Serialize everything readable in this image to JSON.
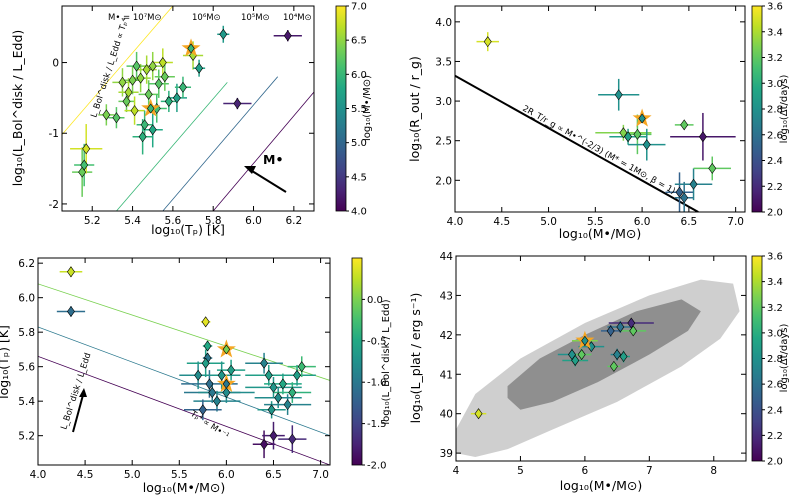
{
  "colors": {
    "viridis": [
      "#440154",
      "#482475",
      "#414487",
      "#355f8d",
      "#2a788e",
      "#21918c",
      "#22a884",
      "#44bf70",
      "#7ad151",
      "#bddf26",
      "#fde725"
    ],
    "highlight": "#f5a623",
    "grey_outer": "#cfcfcf",
    "grey_inner": "#8f8f8f",
    "arrow": "#000000"
  },
  "chart_data": [
    {
      "id": "p1",
      "type": "scatter",
      "xlabel": "log₁₀(Tₚ) [K]",
      "ylabel": "log₁₀(L_Bol^disk / L_Edd)",
      "xlim": [
        5.05,
        6.3
      ],
      "ylim": [
        -2.1,
        0.8
      ],
      "xticks": [
        5.2,
        5.4,
        5.6,
        5.8,
        6.0,
        6.2
      ],
      "xtick_labels": [
        "5.2",
        "5.4",
        "5.6",
        "5.8",
        "6.0",
        "6.2"
      ],
      "yticks": [
        -2,
        -1,
        0
      ],
      "ytick_labels": [
        "-2",
        "-1",
        "0"
      ],
      "colorbar": {
        "label": "log₁₀(M•/M⊙)",
        "min": 4.0,
        "max": 7.0,
        "ticks": [
          "4.0",
          "4.5",
          "5.0",
          "5.5",
          "6.0",
          "6.5",
          "7.0"
        ]
      },
      "lines": [
        {
          "label": "M• = 10⁷M⊙",
          "x": [
            5.05,
            5.6
          ],
          "y": [
            -1.02,
            0.8
          ],
          "color_value": 7.0
        },
        {
          "label": "10⁶M⊙",
          "x": [
            5.32,
            5.87
          ],
          "y": [
            -2.1,
            -0.28
          ],
          "color_value": 6.0
        },
        {
          "label": "10⁵M⊙",
          "x": [
            5.55,
            6.12
          ],
          "y": [
            -2.1,
            -0.2
          ],
          "color_value": 5.0
        },
        {
          "label": "10⁴M⊙",
          "x": [
            5.8,
            6.32
          ],
          "y": [
            -2.1,
            -0.35
          ],
          "color_value": 4.0
        }
      ],
      "annotations": [
        "L_Bol^disk / L_Edd ∝ Tₚ⁴",
        "M•"
      ],
      "points": [
        {
          "x": 5.15,
          "y": -1.55,
          "xe": 0.05,
          "ye": 0.35,
          "c": 6.3
        },
        {
          "x": 5.16,
          "y": -1.45,
          "xe": 0.05,
          "ye": 0.3,
          "c": 6.1
        },
        {
          "x": 5.17,
          "y": -1.22,
          "xe": 0.08,
          "ye": 0.35,
          "c": 6.8
        },
        {
          "x": 5.27,
          "y": -0.74,
          "xe": 0.04,
          "ye": 0.15,
          "c": 6.4
        },
        {
          "x": 5.32,
          "y": -0.78,
          "xe": 0.04,
          "ye": 0.15,
          "c": 6.2
        },
        {
          "x": 5.35,
          "y": -0.28,
          "xe": 0.05,
          "ye": 0.2,
          "c": 6.5
        },
        {
          "x": 5.37,
          "y": -0.55,
          "xe": 0.04,
          "ye": 0.15,
          "c": 6.3
        },
        {
          "x": 5.38,
          "y": -0.42,
          "xe": 0.05,
          "ye": 0.2,
          "c": 6.6
        },
        {
          "x": 5.4,
          "y": -0.25,
          "xe": 0.05,
          "ye": 0.2,
          "c": 6.4
        },
        {
          "x": 5.41,
          "y": -0.68,
          "xe": 0.05,
          "ye": 0.2,
          "c": 6.7
        },
        {
          "x": 5.42,
          "y": -0.05,
          "xe": 0.05,
          "ye": 0.2,
          "c": 6.2
        },
        {
          "x": 5.44,
          "y": -0.22,
          "xe": 0.05,
          "ye": 0.2,
          "c": 6.5
        },
        {
          "x": 5.45,
          "y": -1.05,
          "xe": 0.05,
          "ye": 0.25,
          "c": 5.9
        },
        {
          "x": 5.46,
          "y": -0.88,
          "xe": 0.04,
          "ye": 0.2,
          "c": 6.0
        },
        {
          "x": 5.47,
          "y": -0.1,
          "xe": 0.05,
          "ye": 0.2,
          "c": 6.6
        },
        {
          "x": 5.48,
          "y": -0.45,
          "xe": 0.05,
          "ye": 0.2,
          "c": 6.3
        },
        {
          "x": 5.5,
          "y": -0.95,
          "xe": 0.05,
          "ye": 0.25,
          "c": 5.8
        },
        {
          "x": 5.5,
          "y": -0.05,
          "xe": 0.05,
          "ye": 0.2,
          "c": 6.5
        },
        {
          "x": 5.52,
          "y": -0.65,
          "xe": 0.05,
          "ye": 0.2,
          "c": 6.1
        },
        {
          "x": 5.53,
          "y": -0.3,
          "xe": 0.05,
          "ye": 0.2,
          "c": 6.2
        },
        {
          "x": 5.55,
          "y": 0.0,
          "xe": 0.05,
          "ye": 0.2,
          "c": 6.7
        },
        {
          "x": 5.56,
          "y": -0.2,
          "xe": 0.05,
          "ye": 0.2,
          "c": 6.3
        },
        {
          "x": 5.58,
          "y": -0.55,
          "xe": 0.04,
          "ye": 0.15,
          "c": 5.9
        },
        {
          "x": 5.62,
          "y": -0.5,
          "xe": 0.05,
          "ye": 0.2,
          "c": 5.7
        },
        {
          "x": 5.65,
          "y": -0.35,
          "xe": 0.04,
          "ye": 0.15,
          "c": 6.0
        },
        {
          "x": 5.7,
          "y": 0.1,
          "xe": 0.05,
          "ye": 0.2,
          "c": 6.6
        },
        {
          "x": 5.73,
          "y": -0.08,
          "xe": 0.03,
          "ye": 0.12,
          "c": 5.7
        },
        {
          "x": 5.85,
          "y": 0.4,
          "xe": 0.03,
          "ye": 0.12,
          "c": 5.6
        },
        {
          "x": 5.92,
          "y": -0.58,
          "xe": 0.07,
          "ye": 0.08,
          "c": 4.3
        },
        {
          "x": 6.17,
          "y": 0.38,
          "xe": 0.07,
          "ye": 0.08,
          "c": 4.2
        }
      ],
      "highlights": [
        {
          "x": 5.49,
          "y": -0.65,
          "c": 6.0
        },
        {
          "x": 5.69,
          "y": 0.2,
          "c": 6.0
        }
      ]
    },
    {
      "id": "p2",
      "type": "scatter",
      "xlabel": "log₁₀(M•/M⊙)",
      "ylabel": "log₁₀(R_out / r_g)",
      "xlim": [
        4.0,
        7.1
      ],
      "ylim": [
        1.6,
        4.2
      ],
      "xticks": [
        4.0,
        4.5,
        5.0,
        5.5,
        6.0,
        6.5,
        7.0
      ],
      "xtick_labels": [
        "4.0",
        "4.5",
        "5.0",
        "5.5",
        "6.0",
        "6.5",
        "7.0"
      ],
      "yticks": [
        2.0,
        2.5,
        3.0,
        3.5,
        4.0
      ],
      "ytick_labels": [
        "2.0",
        "2.5",
        "3.0",
        "3.5",
        "4.0"
      ],
      "colorbar": {
        "label": "log₁₀(Δt/days)",
        "min": 2.0,
        "max": 3.6,
        "ticks": [
          "2.0",
          "2.2",
          "2.4",
          "2.6",
          "2.8",
          "3.0",
          "3.2",
          "3.4",
          "3.6"
        ]
      },
      "lines": [
        {
          "label": "2R_T/r_g ∝ M•^(-2/3)  (M* = 1M⊙, β = 1)",
          "x": [
            4.0,
            6.6
          ],
          "y": [
            3.32,
            1.6
          ],
          "color_value": null
        }
      ],
      "annotations": [
        "2R_T/r_g ∝ M•^(-2/3)  (M* = 1M⊙, β = 1)"
      ],
      "points": [
        {
          "x": 4.35,
          "y": 3.75,
          "xe": 0.12,
          "ye": 0.12,
          "c": 3.5
        },
        {
          "x": 5.75,
          "y": 3.08,
          "xe": 0.22,
          "ye": 0.2,
          "c": 2.8
        },
        {
          "x": 5.8,
          "y": 2.6,
          "xe": 0.3,
          "ye": 0.1,
          "c": 3.3
        },
        {
          "x": 5.85,
          "y": 2.55,
          "xe": 0.2,
          "ye": 0.1,
          "c": 2.9
        },
        {
          "x": 5.95,
          "y": 2.58,
          "xe": 0.15,
          "ye": 0.25,
          "c": 3.2
        },
        {
          "x": 6.05,
          "y": 2.45,
          "xe": 0.2,
          "ye": 0.2,
          "c": 2.8
        },
        {
          "x": 6.45,
          "y": 2.7,
          "xe": 0.1,
          "ye": 0.05,
          "c": 3.2
        },
        {
          "x": 6.4,
          "y": 1.85,
          "xe": 0.15,
          "ye": 0.25,
          "c": 2.5
        },
        {
          "x": 6.45,
          "y": 1.78,
          "xe": 0.1,
          "ye": 0.2,
          "c": 2.6
        },
        {
          "x": 6.55,
          "y": 1.95,
          "xe": 0.2,
          "ye": 0.2,
          "c": 2.7
        },
        {
          "x": 6.65,
          "y": 2.55,
          "xe": 0.35,
          "ye": 0.3,
          "c": 2.1
        },
        {
          "x": 6.75,
          "y": 2.15,
          "xe": 0.2,
          "ye": 0.15,
          "c": 3.2
        }
      ],
      "highlights": [
        {
          "x": 6.0,
          "y": 2.78,
          "c": 2.8
        }
      ]
    },
    {
      "id": "p3",
      "type": "scatter",
      "xlabel": "log₁₀(M•/M⊙)",
      "ylabel": "log₁₀(Tₚ) [K]",
      "xlim": [
        4.0,
        7.1
      ],
      "ylim": [
        5.03,
        6.23
      ],
      "xticks": [
        4.0,
        4.5,
        5.0,
        5.5,
        6.0,
        6.5,
        7.0
      ],
      "xtick_labels": [
        "4.0",
        "4.5",
        "5.0",
        "5.5",
        "6.0",
        "6.5",
        "7.0"
      ],
      "yticks": [
        5.2,
        5.4,
        5.6,
        5.8,
        6.0,
        6.2
      ],
      "ytick_labels": [
        "5.2",
        "5.4",
        "5.6",
        "5.8",
        "6.0",
        "6.2"
      ],
      "colorbar": {
        "label": "log₁₀(L_Bol^disk / L_Edd)",
        "min": -2.0,
        "max": 0.5,
        "ticks": [
          "-2.0",
          "-1.5",
          "-1.0",
          "-0.5",
          "0.0"
        ]
      },
      "lines": [
        {
          "label": "",
          "x": [
            4.0,
            7.1
          ],
          "y": [
            6.08,
            5.52
          ],
          "color_value": 0.0
        },
        {
          "label": "",
          "x": [
            4.0,
            7.1
          ],
          "y": [
            5.83,
            5.2
          ],
          "color_value": -1.0
        },
        {
          "label": "",
          "x": [
            4.0,
            7.1
          ],
          "y": [
            5.66,
            5.03
          ],
          "color_value": -2.0
        }
      ],
      "annotations": [
        "Tₚ⁴ ∝ M•⁻¹",
        "L_Bol^disk / L_Edd"
      ],
      "points": [
        {
          "x": 4.35,
          "y": 6.15,
          "xe": 0.12,
          "ye": 0.03,
          "c": 0.3
        },
        {
          "x": 4.35,
          "y": 5.92,
          "xe": 0.15,
          "ye": 0.03,
          "c": -1.1
        },
        {
          "x": 5.78,
          "y": 5.86,
          "xe": 0.05,
          "ye": 0.02,
          "c": 0.4
        },
        {
          "x": 5.8,
          "y": 5.72,
          "xe": 0.05,
          "ye": 0.03,
          "c": -0.5
        },
        {
          "x": 5.8,
          "y": 5.65,
          "xe": 0.05,
          "ye": 0.03,
          "c": -1.0
        },
        {
          "x": 5.7,
          "y": 5.55,
          "xe": 0.2,
          "ye": 0.08,
          "c": -0.8
        },
        {
          "x": 5.78,
          "y": 5.62,
          "xe": 0.2,
          "ye": 0.08,
          "c": -0.6
        },
        {
          "x": 5.82,
          "y": 5.5,
          "xe": 0.3,
          "ye": 0.08,
          "c": -1.1
        },
        {
          "x": 5.85,
          "y": 5.45,
          "xe": 0.3,
          "ye": 0.06,
          "c": -1.0
        },
        {
          "x": 5.9,
          "y": 5.4,
          "xe": 0.25,
          "ye": 0.06,
          "c": -0.9
        },
        {
          "x": 5.95,
          "y": 5.55,
          "xe": 0.2,
          "ye": 0.08,
          "c": -0.7
        },
        {
          "x": 5.75,
          "y": 5.35,
          "xe": 0.2,
          "ye": 0.06,
          "c": -1.2
        },
        {
          "x": 6.05,
          "y": 5.58,
          "xe": 0.15,
          "ye": 0.06,
          "c": -0.6
        },
        {
          "x": 6.0,
          "y": 5.45,
          "xe": 0.3,
          "ye": 0.06,
          "c": -0.8
        },
        {
          "x": 6.4,
          "y": 5.62,
          "xe": 0.2,
          "ye": 0.06,
          "c": -0.9
        },
        {
          "x": 6.45,
          "y": 5.55,
          "xe": 0.25,
          "ye": 0.06,
          "c": -0.6
        },
        {
          "x": 6.5,
          "y": 5.48,
          "xe": 0.3,
          "ye": 0.06,
          "c": -0.7
        },
        {
          "x": 6.55,
          "y": 5.42,
          "xe": 0.25,
          "ye": 0.06,
          "c": -0.8
        },
        {
          "x": 6.6,
          "y": 5.5,
          "xe": 0.2,
          "ye": 0.06,
          "c": -0.5
        },
        {
          "x": 6.65,
          "y": 5.38,
          "xe": 0.25,
          "ye": 0.06,
          "c": -0.9
        },
        {
          "x": 6.7,
          "y": 5.45,
          "xe": 0.2,
          "ye": 0.06,
          "c": -0.4
        },
        {
          "x": 6.75,
          "y": 5.55,
          "xe": 0.2,
          "ye": 0.06,
          "c": -0.6
        },
        {
          "x": 6.8,
          "y": 5.6,
          "xe": 0.15,
          "ye": 0.06,
          "c": -0.3
        },
        {
          "x": 6.48,
          "y": 5.35,
          "xe": 0.15,
          "ye": 0.05,
          "c": -0.7
        },
        {
          "x": 6.4,
          "y": 5.15,
          "xe": 0.12,
          "ye": 0.08,
          "c": -1.9
        },
        {
          "x": 6.5,
          "y": 5.2,
          "xe": 0.12,
          "ye": 0.08,
          "c": -1.8
        },
        {
          "x": 6.7,
          "y": 5.18,
          "xe": 0.15,
          "ye": 0.08,
          "c": -1.7
        }
      ],
      "highlights": [
        {
          "x": 6.0,
          "y": 5.7,
          "c": 0.0
        },
        {
          "x": 6.0,
          "y": 5.5,
          "c": -1.0
        }
      ]
    },
    {
      "id": "p4",
      "type": "scatter",
      "xlabel": "log₁₀(M•/M⊙)",
      "ylabel": "log₁₀(L_plat / erg s⁻¹)",
      "xlim": [
        4.0,
        8.5
      ],
      "ylim": [
        38.8,
        44.0
      ],
      "xticks": [
        4,
        5,
        6,
        7,
        8
      ],
      "xtick_labels": [
        "4",
        "5",
        "6",
        "7",
        "8"
      ],
      "yticks": [
        39,
        40,
        41,
        42,
        43,
        44
      ],
      "ytick_labels": [
        "39",
        "40",
        "41",
        "42",
        "43",
        "44"
      ],
      "colorbar": {
        "label": "log₁₀(Δt/days)",
        "min": 2.0,
        "max": 3.6,
        "ticks": [
          "2.0",
          "2.2",
          "2.4",
          "2.6",
          "2.8",
          "3.0",
          "3.2",
          "3.4",
          "3.6"
        ]
      },
      "regions": [
        {
          "name": "outer",
          "x": [
            4.0,
            4.3,
            5.0,
            6.0,
            7.0,
            7.8,
            8.3,
            8.4,
            8.1,
            7.5,
            6.5,
            5.5,
            4.8,
            4.3,
            4.0
          ],
          "y": [
            39.6,
            40.5,
            41.4,
            42.3,
            43.0,
            43.4,
            43.3,
            42.6,
            41.9,
            41.2,
            40.3,
            39.6,
            39.1,
            38.9,
            39.0
          ]
        },
        {
          "name": "inner",
          "x": [
            4.8,
            5.3,
            6.0,
            6.8,
            7.5,
            7.8,
            7.6,
            7.0,
            6.2,
            5.5,
            5.0,
            4.8
          ],
          "y": [
            40.7,
            41.4,
            42.0,
            42.6,
            42.9,
            42.6,
            42.1,
            41.5,
            40.8,
            40.3,
            40.1,
            40.4
          ]
        }
      ],
      "annotations": [],
      "points": [
        {
          "x": 4.35,
          "y": 40.0,
          "xe": 0.12,
          "ye": 0.1,
          "c": 3.5
        },
        {
          "x": 5.8,
          "y": 41.5,
          "xe": 0.22,
          "ye": 0.15,
          "c": 2.8
        },
        {
          "x": 5.85,
          "y": 41.35,
          "xe": 0.2,
          "ye": 0.15,
          "c": 2.9
        },
        {
          "x": 5.95,
          "y": 41.5,
          "xe": 0.15,
          "ye": 0.15,
          "c": 3.2
        },
        {
          "x": 6.0,
          "y": 41.85,
          "xe": 0.2,
          "ye": 0.1,
          "c": 3.3
        },
        {
          "x": 6.1,
          "y": 41.7,
          "xe": 0.2,
          "ye": 0.1,
          "c": 2.8
        },
        {
          "x": 6.4,
          "y": 42.1,
          "xe": 0.15,
          "ye": 0.15,
          "c": 2.5
        },
        {
          "x": 6.45,
          "y": 41.2,
          "xe": 0.1,
          "ye": 0.1,
          "c": 3.2
        },
        {
          "x": 6.5,
          "y": 41.5,
          "xe": 0.1,
          "ye": 0.15,
          "c": 2.7
        },
        {
          "x": 6.55,
          "y": 42.2,
          "xe": 0.2,
          "ye": 0.15,
          "c": 2.6
        },
        {
          "x": 6.6,
          "y": 41.45,
          "xe": 0.1,
          "ye": 0.15,
          "c": 2.9
        },
        {
          "x": 6.72,
          "y": 42.3,
          "xe": 0.35,
          "ye": 0.1,
          "c": 2.2
        },
        {
          "x": 6.75,
          "y": 42.1,
          "xe": 0.2,
          "ye": 0.1,
          "c": 3.2
        }
      ],
      "highlights": [
        {
          "x": 6.0,
          "y": 41.85,
          "c": 2.8
        }
      ]
    }
  ]
}
